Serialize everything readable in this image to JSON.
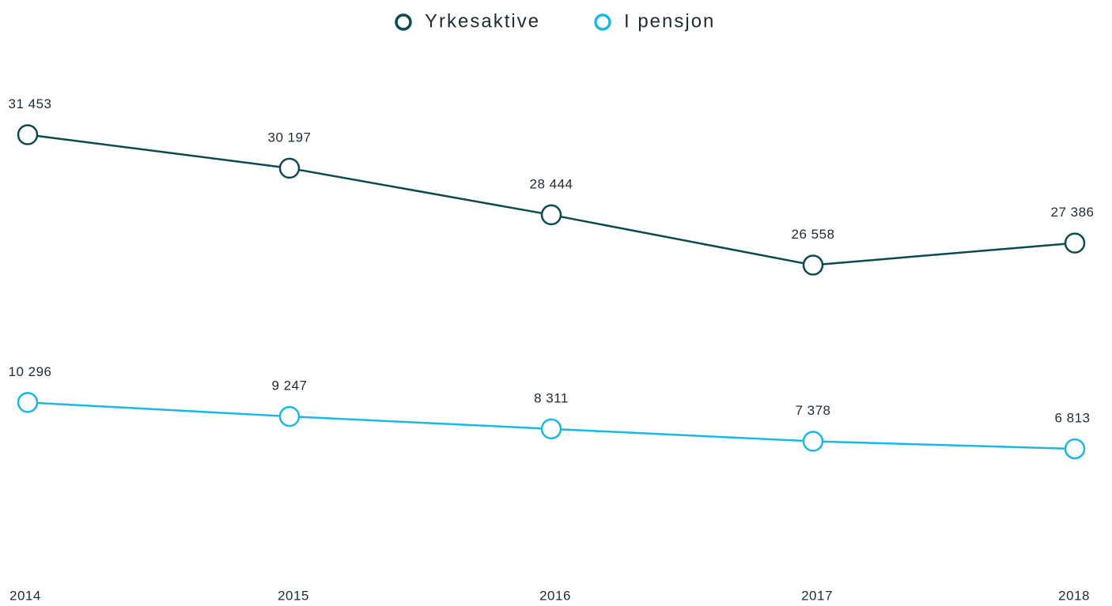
{
  "chart_data": {
    "type": "line",
    "categories": [
      "2014",
      "2015",
      "2016",
      "2017",
      "2018"
    ],
    "series": [
      {
        "name": "Yrkesaktive",
        "color": "#0c4a50",
        "values": [
          31453,
          30197,
          28444,
          26558,
          27386
        ],
        "value_labels": [
          "31 453",
          "30 197",
          "28 444",
          "26 558",
          "27 386"
        ]
      },
      {
        "name": "I pensjon",
        "color": "#1ab6e6",
        "axis": "y2",
        "values": [
          10296,
          9247,
          8311,
          7378,
          6813
        ],
        "value_labels": [
          "10 296",
          "9 247",
          "8 311",
          "7 378",
          "6 813"
        ]
      }
    ],
    "ylim": [
      15000,
      35000
    ],
    "y2lim": [
      -2500,
      37500
    ],
    "legend": "top"
  }
}
